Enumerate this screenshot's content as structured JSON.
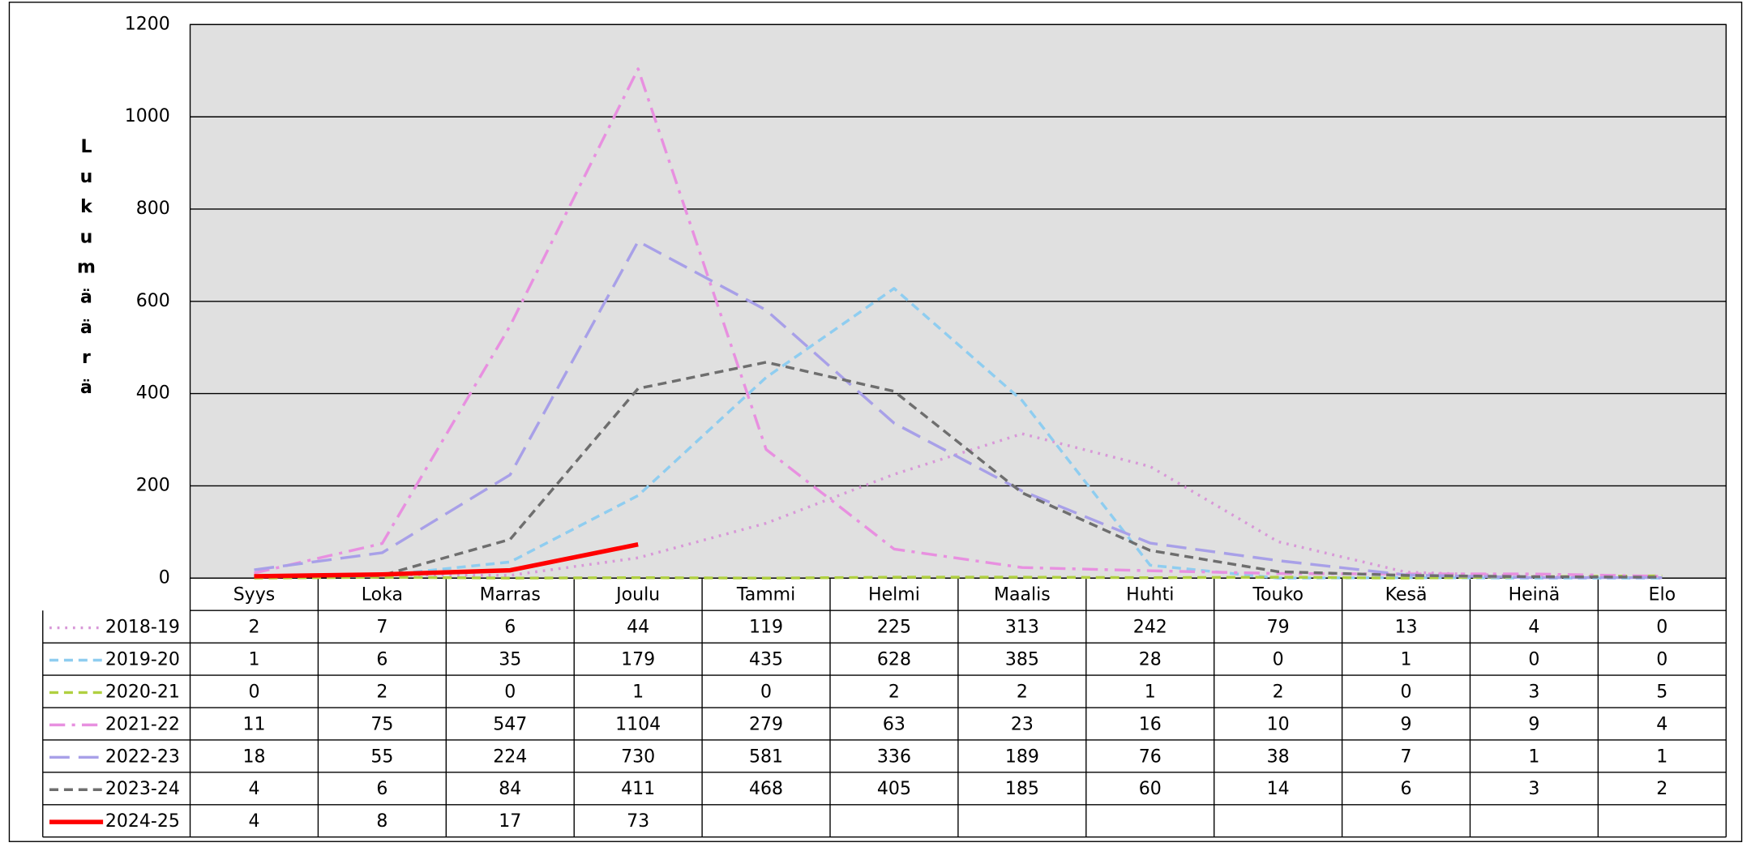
{
  "chart_data": {
    "type": "line",
    "y_label": "Lukumäärä",
    "categories": [
      "Syys",
      "Loka",
      "Marras",
      "Joulu",
      "Tammi",
      "Helmi",
      "Maalis",
      "Huhti",
      "Touko",
      "Kesä",
      "Heinä",
      "Elo"
    ],
    "ylim": [
      0,
      1200
    ],
    "yticks": [
      0,
      200,
      400,
      600,
      800,
      1000,
      1200
    ],
    "grid": true,
    "series": [
      {
        "name": "2018-19",
        "color": "#d898d8",
        "style": "dot",
        "values": [
          2,
          7,
          6,
          44,
          119,
          225,
          313,
          242,
          79,
          13,
          4,
          0
        ]
      },
      {
        "name": "2019-20",
        "color": "#8fcdf0",
        "style": "dash",
        "values": [
          1,
          6,
          35,
          179,
          435,
          628,
          385,
          28,
          0,
          1,
          0,
          0
        ]
      },
      {
        "name": "2020-21",
        "color": "#b0d040",
        "style": "dash",
        "values": [
          0,
          2,
          0,
          1,
          0,
          2,
          2,
          1,
          2,
          0,
          3,
          5
        ]
      },
      {
        "name": "2021-22",
        "color": "#e890e0",
        "style": "dashdot",
        "values": [
          11,
          75,
          547,
          1104,
          279,
          63,
          23,
          16,
          10,
          9,
          9,
          4
        ]
      },
      {
        "name": "2022-23",
        "color": "#a8a0e8",
        "style": "longdash",
        "values": [
          18,
          55,
          224,
          730,
          581,
          336,
          189,
          76,
          38,
          7,
          1,
          1
        ]
      },
      {
        "name": "2023-24",
        "color": "#6e6e6e",
        "style": "dash",
        "values": [
          4,
          6,
          84,
          411,
          468,
          405,
          185,
          60,
          14,
          6,
          3,
          2
        ]
      },
      {
        "name": "2024-25",
        "color": "#ff0000",
        "style": "solid",
        "values": [
          4,
          8,
          17,
          73,
          null,
          null,
          null,
          null,
          null,
          null,
          null,
          null
        ]
      }
    ]
  }
}
